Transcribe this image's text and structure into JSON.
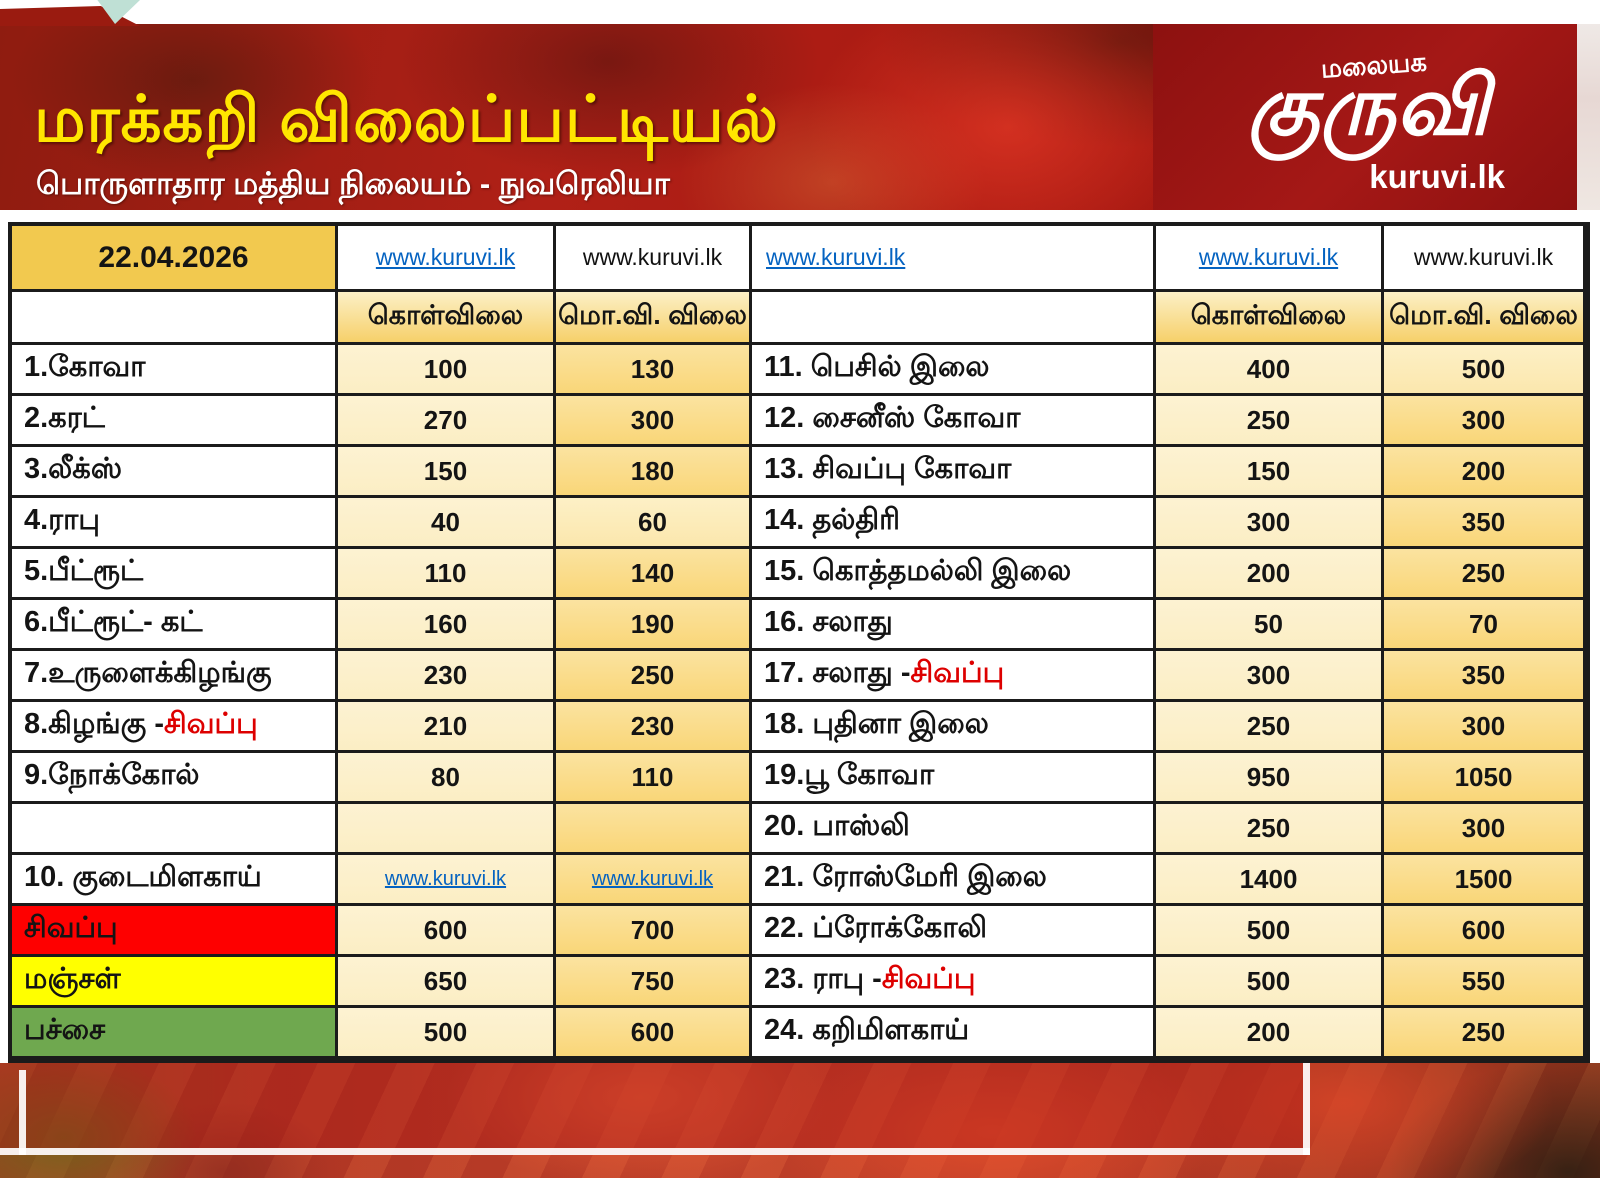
{
  "header": {
    "title": "மரக்கறி விலைப்பட்டியல்",
    "subtitle": "பொருளாதார மத்திய நிலையம் - நுவரெலியா",
    "logo_top": "மலையக",
    "logo_main": "குருவி",
    "logo_site": "kuruvi.lk"
  },
  "table": {
    "date": "22.04.2026",
    "link_text": "www.kuruvi.lk",
    "col_headers": {
      "buy": "கொள்விலை",
      "wholesale": "மொ.வி. விலை"
    },
    "rows": [
      {
        "left": {
          "label": "1.கோவா",
          "buy": "100",
          "sell": "130"
        },
        "right": {
          "label": "11. பெசில் இலை",
          "buy": "400",
          "sell": "500",
          "sell_light": true
        }
      },
      {
        "left": {
          "label": "2.கரட்",
          "buy": "270",
          "sell": "300"
        },
        "right": {
          "label": "12. சைனீஸ் கோவா",
          "buy": "250",
          "sell": "300"
        }
      },
      {
        "left": {
          "label": "3.லீக்ஸ்",
          "buy": "150",
          "sell": "180"
        },
        "right": {
          "label": "13. சிவப்பு கோவா",
          "buy": "150",
          "sell": "200"
        }
      },
      {
        "left": {
          "label": "4.ராபு",
          "buy": "40",
          "sell": "60",
          "sell_light": true
        },
        "right": {
          "label": "14. தல்திரி",
          "buy": "300",
          "sell": "350"
        }
      },
      {
        "left": {
          "label": "5.பீட்ரூட்",
          "buy": "110",
          "sell": "140"
        },
        "right": {
          "label": "15. கொத்தமல்லி இலை",
          "buy": "200",
          "sell": "250"
        }
      },
      {
        "left": {
          "label": "6.பீட்ரூட்- கட்",
          "buy": "160",
          "sell": "190"
        },
        "right": {
          "label": "16. சலாது",
          "buy": "50",
          "sell": "70"
        }
      },
      {
        "left": {
          "label": "7.உருளைக்கிழங்கு",
          "buy": "230",
          "sell": "250"
        },
        "right": {
          "label": "17. சலாது - ",
          "red": "சிவப்பு",
          "buy": "300",
          "sell": "350"
        }
      },
      {
        "left": {
          "label": "8.கிழங்கு - ",
          "red": "சிவப்பு",
          "buy": "210",
          "sell": "230"
        },
        "right": {
          "label": "18. புதினா இலை",
          "buy": "250",
          "sell": "300"
        }
      },
      {
        "left": {
          "label": "9.நோக்கோல்",
          "buy": "80",
          "sell": "110"
        },
        "right": {
          "label": "19.பூ கோவா",
          "buy": "950",
          "sell": "1050"
        }
      },
      {
        "left": {
          "label": "",
          "buy": "",
          "sell": ""
        },
        "right": {
          "label": "20. பாஸ்லி",
          "buy": "250",
          "sell": "300"
        }
      },
      {
        "left": {
          "label": "10. குடைமிளகாய்",
          "buy_link": true,
          "sell_link": true
        },
        "right": {
          "label": "21. ரோஸ்மேரி இலை",
          "buy": "1400",
          "sell": "1500"
        }
      },
      {
        "left": {
          "label": "சிவப்பு",
          "label_bg": "red",
          "buy": "600",
          "sell": "700"
        },
        "right": {
          "label": "22. ப்ரோக்கோலி",
          "buy": "500",
          "sell": "600"
        }
      },
      {
        "left": {
          "label": "மஞ்சள்",
          "label_bg": "yellow",
          "buy": "650",
          "sell": "750"
        },
        "right": {
          "label": "23. ராபு - ",
          "red": "சிவப்பு",
          "buy": "500",
          "sell": "550"
        }
      },
      {
        "left": {
          "label": "பச்சை",
          "label_bg": "green",
          "buy": "500",
          "sell": "600"
        },
        "right": {
          "label": "24. கறிமிளகாய்",
          "buy": "200",
          "sell": "250"
        }
      }
    ]
  },
  "colors": {
    "banner_red": "#a91a12",
    "logo_box_red": "#8d1110",
    "title_yellow": "#ffe600",
    "date_gold": "#f2c94f",
    "buy_cream": "#fbeec4",
    "sell_gold": "#f9d678",
    "row_red": "#fe0000",
    "row_yellow": "#ffff00",
    "row_green": "#6fa84f",
    "accent_red_text": "#dd0000",
    "link_blue": "#0563c1",
    "border_black": "#1b1b1b"
  }
}
